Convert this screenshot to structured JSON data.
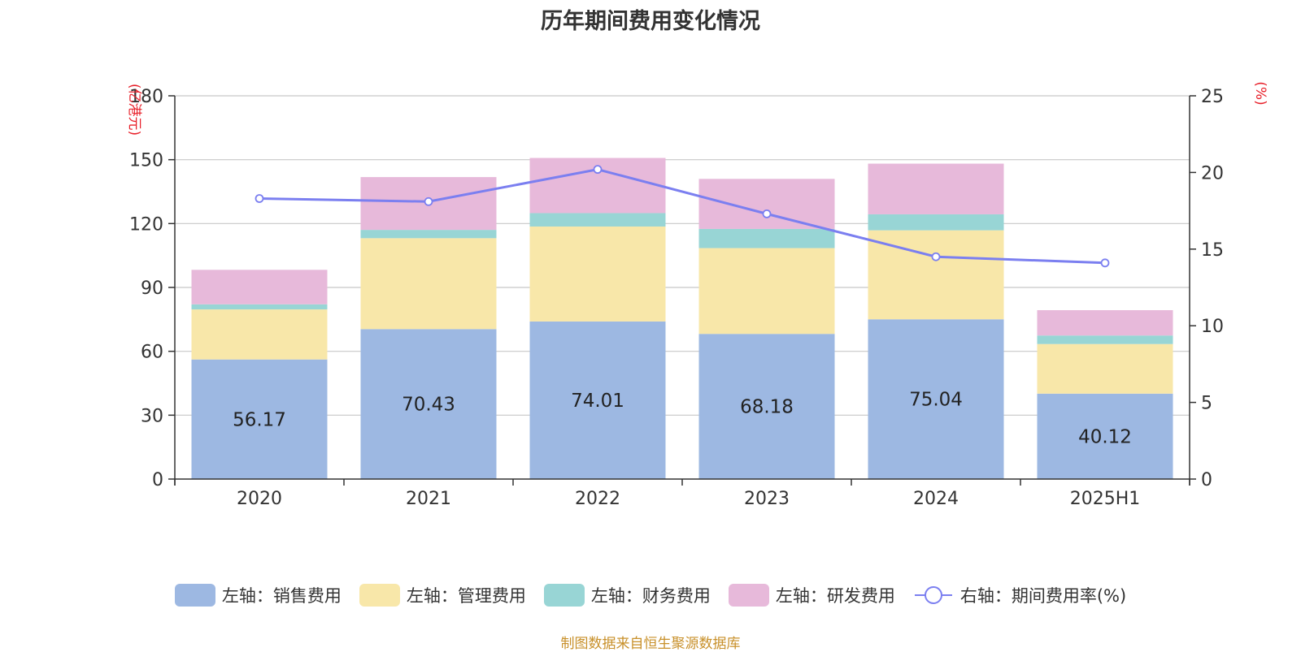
{
  "chart_data": {
    "type": "bar",
    "title": "历年期间费用变化情况",
    "categories": [
      "2020",
      "2021",
      "2022",
      "2023",
      "2024",
      "2025H1"
    ],
    "series": [
      {
        "name": "左轴：销售费用",
        "axis": "left",
        "stack": "fees",
        "color": "#9db8e2",
        "values": [
          56.17,
          70.43,
          74.01,
          68.18,
          75.04,
          40.12
        ],
        "labels": [
          "56.17",
          "70.43",
          "74.01",
          "68.18",
          "75.04",
          "40.12"
        ]
      },
      {
        "name": "左轴：管理费用",
        "axis": "left",
        "stack": "fees",
        "color": "#f8e7a9",
        "values": [
          23.5,
          42.7,
          44.6,
          40.3,
          41.8,
          23.3
        ]
      },
      {
        "name": "左轴：财务费用",
        "axis": "left",
        "stack": "fees",
        "color": "#98d5d5",
        "values": [
          2.4,
          3.9,
          6.3,
          9.0,
          7.5,
          4.0
        ]
      },
      {
        "name": "左轴：研发费用",
        "axis": "left",
        "stack": "fees",
        "color": "#e7b9da",
        "values": [
          16.2,
          24.8,
          25.9,
          23.5,
          23.8,
          11.9
        ]
      },
      {
        "name": "右轴：期间费用率(%)",
        "axis": "right",
        "type": "line",
        "color": "#7b7ff0",
        "values": [
          18.3,
          18.1,
          20.2,
          17.3,
          14.5,
          14.1
        ]
      }
    ],
    "y_left": {
      "label": "(亿港元)",
      "ylim": [
        0,
        180
      ],
      "ticks": [
        "0",
        "30",
        "60",
        "90",
        "120",
        "150",
        "180"
      ]
    },
    "y_right": {
      "label": "(%)",
      "ylim": [
        0,
        25
      ],
      "ticks": [
        "0",
        "5",
        "10",
        "15",
        "20",
        "25"
      ]
    },
    "grid": true,
    "legend_position": "bottom-center",
    "source": "制图数据来自恒生聚源数据库"
  }
}
